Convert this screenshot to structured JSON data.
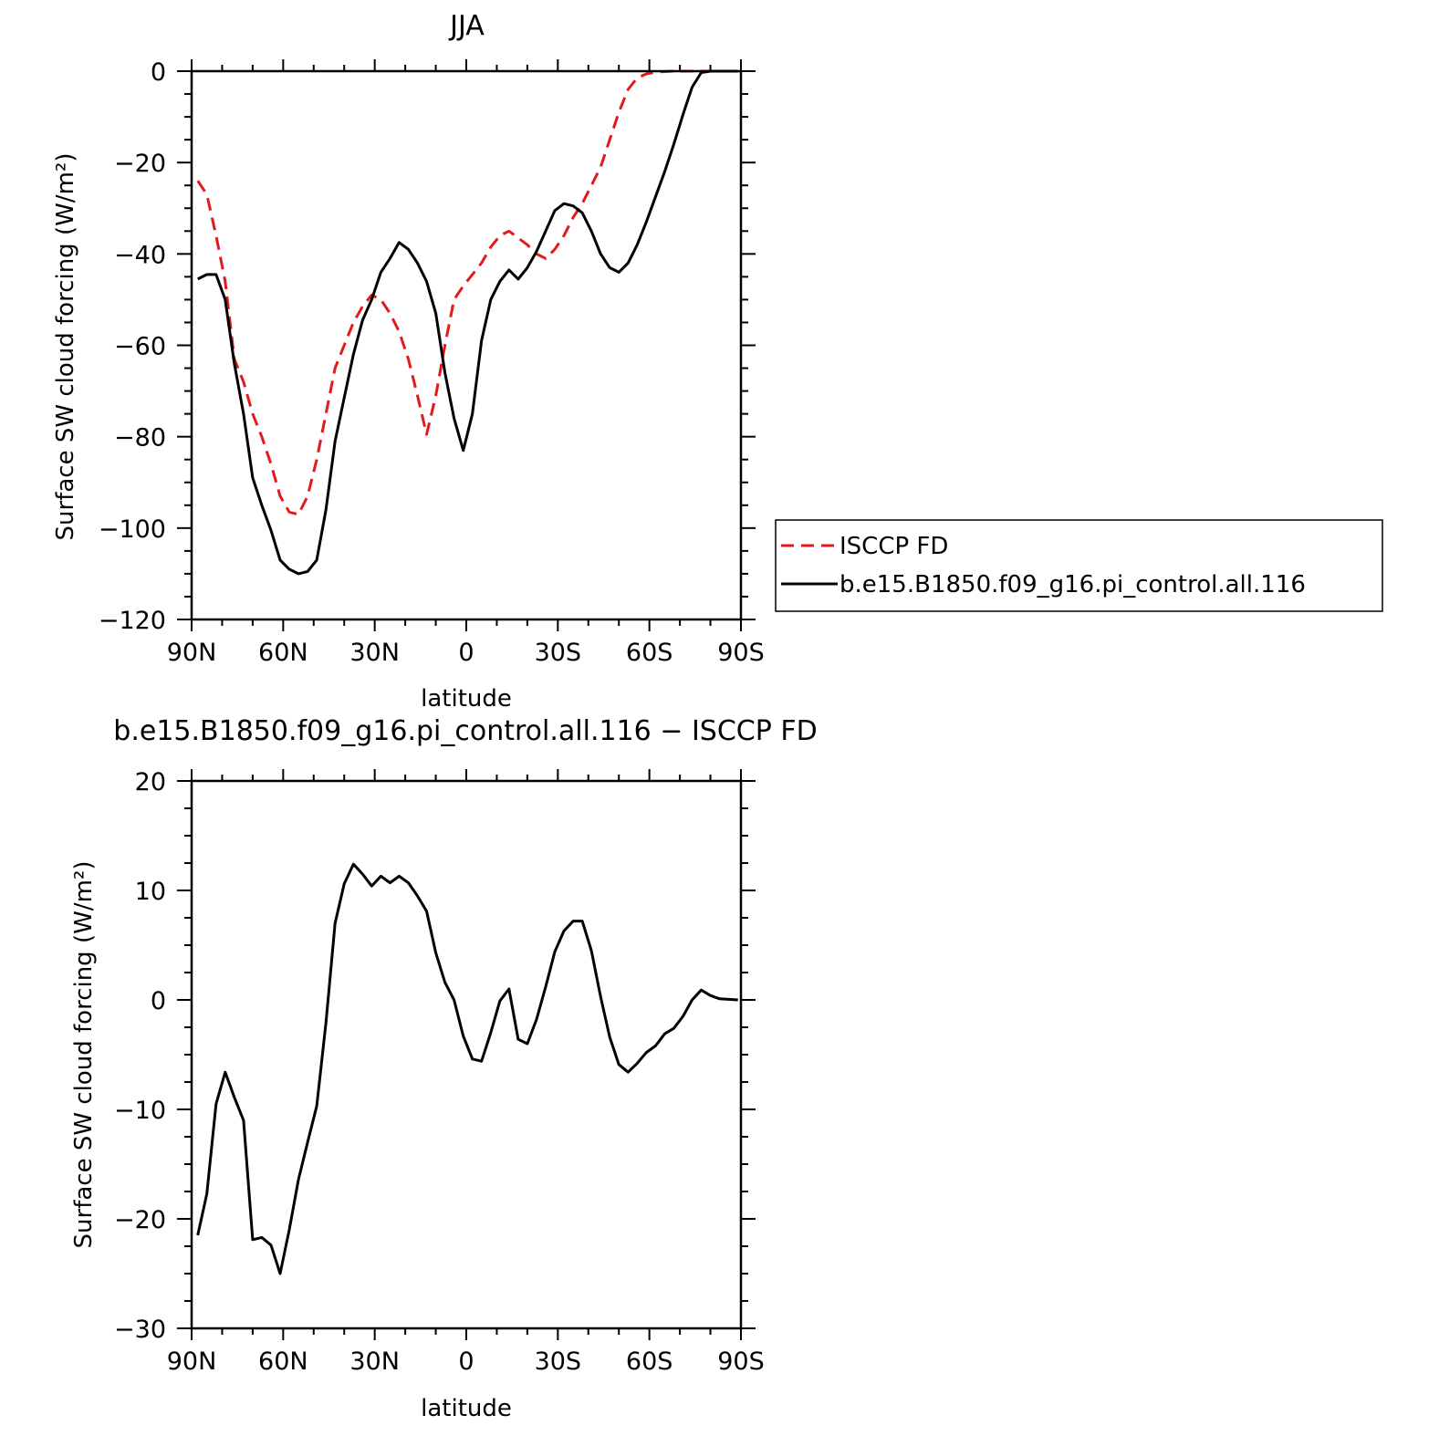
{
  "chart_data": [
    {
      "type": "line",
      "title": "JJA",
      "xlabel": "latitude",
      "ylabel": "Surface SW cloud forcing (W/m²)",
      "xlim": [
        90,
        -90
      ],
      "ylim": [
        -120,
        0
      ],
      "xticks": [
        90,
        60,
        30,
        0,
        -30,
        -60,
        -90
      ],
      "xtick_labels": [
        "90N",
        "60N",
        "30N",
        "0",
        "30S",
        "60S",
        "90S"
      ],
      "yticks": [
        0,
        -20,
        -40,
        -60,
        -80,
        -100,
        -120
      ],
      "ytick_labels": [
        "0",
        "−20",
        "−40",
        "−60",
        "−80",
        "−100",
        "−120"
      ],
      "legend_position": "right",
      "series": [
        {
          "name": "ISCCP FD",
          "color": "#e31a1c",
          "style": "dashed",
          "x": [
            88,
            85,
            82,
            79,
            76,
            73,
            70,
            67,
            64,
            61,
            58,
            55,
            52,
            49,
            46,
            43,
            40,
            37,
            34,
            31,
            28,
            25,
            22,
            19,
            16,
            13,
            10,
            7,
            4,
            1,
            -2,
            -5,
            -8,
            -11,
            -14,
            -17,
            -20,
            -23,
            -26,
            -29,
            -32,
            -35,
            -38,
            -41,
            -44,
            -47,
            -50,
            -53,
            -56,
            -59,
            -62,
            -65,
            -68,
            -71,
            -74,
            -77,
            -80,
            -83,
            -86,
            -89
          ],
          "y": [
            -24,
            -27,
            -36,
            -46,
            -63,
            -68,
            -75,
            -80,
            -86,
            -93,
            -96.5,
            -97,
            -93,
            -85,
            -75,
            -65,
            -60,
            -55,
            -51.5,
            -49,
            -50,
            -53,
            -57,
            -63,
            -71,
            -79.5,
            -71,
            -60,
            -50,
            -47,
            -44.5,
            -42,
            -38.5,
            -36,
            -35,
            -36.5,
            -38,
            -40,
            -41,
            -39,
            -36,
            -32,
            -29,
            -25,
            -21,
            -15,
            -9,
            -4,
            -1.5,
            -0.6,
            -0.2,
            -0.1,
            0,
            0,
            0,
            0,
            0,
            0,
            0,
            0
          ]
        },
        {
          "name": "b.e15.B1850.f09_g16.pi_control.all.116",
          "color": "#000000",
          "style": "solid",
          "x": [
            88,
            85,
            82,
            79,
            76,
            73,
            70,
            67,
            64,
            61,
            58,
            55,
            52,
            49,
            46,
            43,
            40,
            37,
            34,
            31,
            28,
            25,
            22,
            19,
            16,
            13,
            10,
            7,
            4,
            1,
            -2,
            -5,
            -8,
            -11,
            -14,
            -17,
            -20,
            -23,
            -26,
            -29,
            -32,
            -35,
            -38,
            -41,
            -44,
            -47,
            -50,
            -53,
            -56,
            -59,
            -62,
            -65,
            -68,
            -71,
            -74,
            -77,
            -80,
            -83,
            -86,
            -89
          ],
          "y": [
            -45.5,
            -44.5,
            -44.5,
            -50,
            -64,
            -75,
            -89,
            -95,
            -100.5,
            -107,
            -109,
            -110,
            -109.5,
            -107,
            -96,
            -81,
            -71.5,
            -62,
            -54.5,
            -50,
            -44,
            -41,
            -37.5,
            -39,
            -42,
            -46,
            -53,
            -66,
            -76,
            -83,
            -75,
            -59,
            -50,
            -46,
            -43.5,
            -45.5,
            -43,
            -39.5,
            -35,
            -30.5,
            -29,
            -29.5,
            -31,
            -35,
            -40,
            -43,
            -44,
            -42,
            -38,
            -33,
            -27.5,
            -22,
            -16,
            -9.5,
            -3.5,
            -0.3,
            0,
            0,
            0,
            0
          ]
        }
      ]
    },
    {
      "type": "line",
      "title": "b.e15.B1850.f09_g16.pi_control.all.116 − ISCCP FD",
      "xlabel": "latitude",
      "ylabel": "Surface SW cloud forcing (W/m²)",
      "xlim": [
        90,
        -90
      ],
      "ylim": [
        -30,
        20
      ],
      "xticks": [
        90,
        60,
        30,
        0,
        -30,
        -60,
        -90
      ],
      "xtick_labels": [
        "90N",
        "60N",
        "30N",
        "0",
        "30S",
        "60S",
        "90S"
      ],
      "yticks": [
        20,
        10,
        0,
        -10,
        -20,
        -30
      ],
      "ytick_labels": [
        "20",
        "10",
        "0",
        "−10",
        "−20",
        "−30"
      ],
      "series": [
        {
          "color": "#000000",
          "style": "solid",
          "x": [
            88,
            85,
            82,
            79,
            76,
            73,
            70,
            67,
            64,
            61,
            58,
            55,
            52,
            49,
            46,
            43,
            40,
            37,
            34,
            31,
            28,
            25,
            22,
            19,
            16,
            13,
            10,
            7,
            4,
            1,
            -2,
            -5,
            -8,
            -11,
            -14,
            -17,
            -20,
            -23,
            -26,
            -29,
            -32,
            -35,
            -38,
            -41,
            -44,
            -47,
            -50,
            -53,
            -56,
            -59,
            -62,
            -65,
            -68,
            -71,
            -74,
            -77,
            -80,
            -83,
            -86,
            -89
          ],
          "y": [
            -21.5,
            -17.7,
            -9.5,
            -6.6,
            -8.9,
            -11,
            -21.9,
            -21.7,
            -22.4,
            -25,
            -21,
            -16.4,
            -13,
            -9.7,
            -2.1,
            7,
            10.6,
            12.4,
            11.5,
            10.4,
            11.3,
            10.7,
            11.3,
            10.7,
            9.5,
            8.1,
            4.3,
            1.6,
            0,
            -3.3,
            -5.4,
            -5.6,
            -3,
            -0.1,
            1,
            -3.6,
            -4,
            -1.8,
            1.2,
            4.4,
            6.3,
            7.2,
            7.2,
            4.5,
            0.3,
            -3.4,
            -5.9,
            -6.6,
            -5.8,
            -4.8,
            -4.2,
            -3.1,
            -2.6,
            -1.5,
            0,
            0.9,
            0.4,
            0.1,
            0.05,
            0
          ]
        }
      ]
    }
  ]
}
